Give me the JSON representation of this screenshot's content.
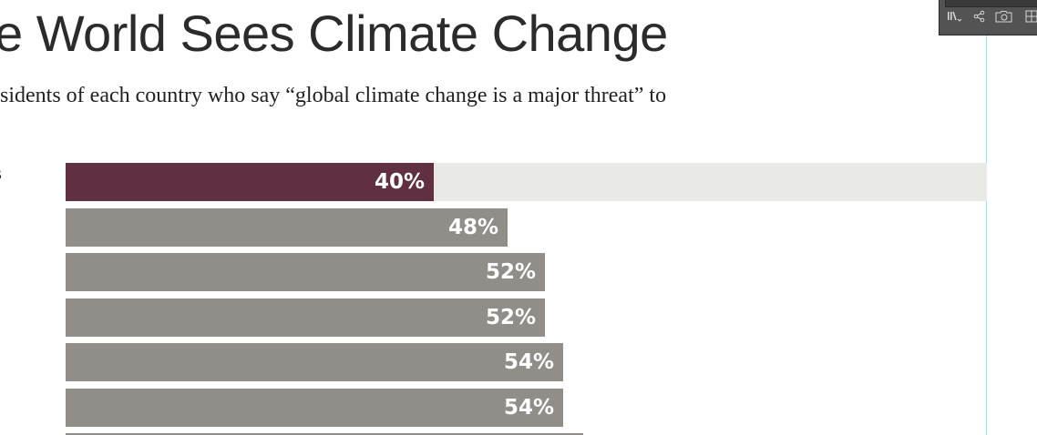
{
  "title": "e World Sees Climate Change",
  "subtitle": "sidents of each country who say “global climate change is a major threat” to",
  "cut_label": "s",
  "panel": {
    "icons": [
      "library-icon",
      "share-icon",
      "camera-folder-icon",
      "grid-icon"
    ]
  },
  "colors": {
    "highlight": "#612f42",
    "bar": "#918d89",
    "track": "#e9e9e5",
    "guide": "#8fe6ee"
  },
  "chart_data": {
    "type": "bar",
    "orientation": "horizontal",
    "values": [
      40,
      48,
      52,
      52,
      54,
      54
    ],
    "labels": [
      "40%",
      "48%",
      "52%",
      "52%",
      "54%",
      "54%"
    ],
    "xlim": [
      0,
      100
    ],
    "highlight_index": 0
  }
}
